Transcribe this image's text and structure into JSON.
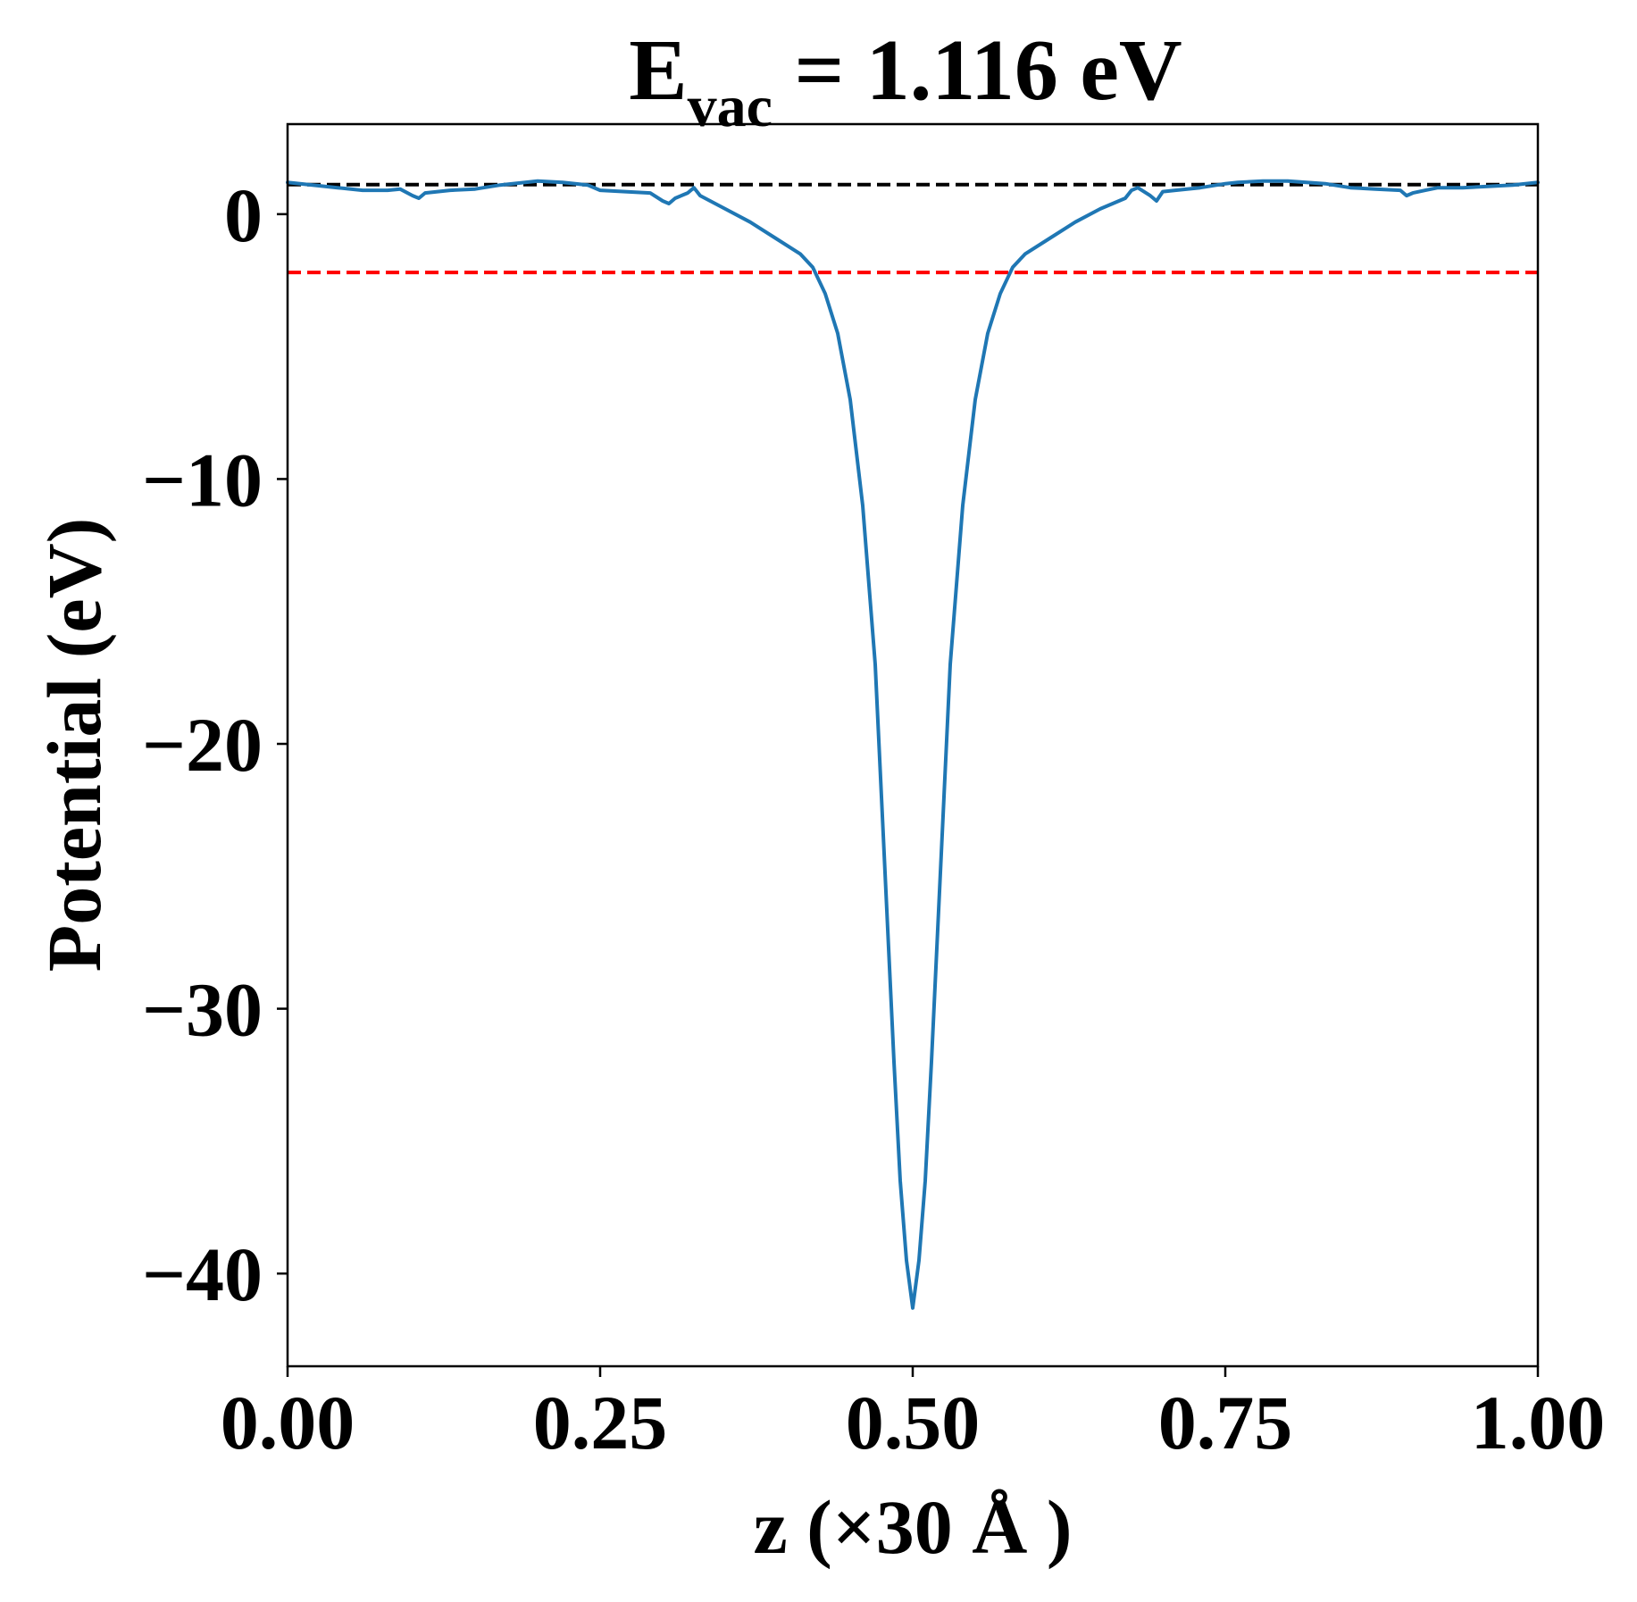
{
  "chart_data": {
    "type": "line",
    "title": {
      "main": "E",
      "subscript": "vac",
      "rest": " = 1.116 eV"
    },
    "xlabel": "z (×30 Å )",
    "ylabel": "Potential (eV)",
    "xlim": [
      0,
      1
    ],
    "ylim": [
      -43.5,
      3.4
    ],
    "xticks": [
      0,
      0.25,
      0.5,
      0.75,
      1.0
    ],
    "xtick_labels": [
      "0.00",
      "0.25",
      "0.50",
      "0.75",
      "1.00"
    ],
    "yticks": [
      0,
      -10,
      -20,
      -30,
      -40
    ],
    "ytick_labels": [
      "0",
      "−10",
      "−20",
      "−30",
      "−40"
    ],
    "grid": false,
    "reference_lines": [
      {
        "y": 1.116,
        "color": "#000000",
        "style": "dashed"
      },
      {
        "y": -2.2,
        "color": "#ff0000",
        "style": "dashed"
      }
    ],
    "series": [
      {
        "color": "#1f77b4",
        "x": [
          0.0,
          0.02,
          0.04,
          0.06,
          0.08,
          0.09,
          0.1,
          0.105,
          0.11,
          0.13,
          0.15,
          0.17,
          0.2,
          0.22,
          0.24,
          0.25,
          0.27,
          0.29,
          0.3,
          0.305,
          0.31,
          0.32,
          0.325,
          0.33,
          0.35,
          0.37,
          0.39,
          0.41,
          0.42,
          0.43,
          0.44,
          0.45,
          0.46,
          0.47,
          0.475,
          0.48,
          0.485,
          0.49,
          0.495,
          0.5,
          0.505,
          0.51,
          0.515,
          0.52,
          0.525,
          0.53,
          0.54,
          0.55,
          0.56,
          0.57,
          0.58,
          0.59,
          0.61,
          0.63,
          0.65,
          0.67,
          0.675,
          0.68,
          0.69,
          0.695,
          0.7,
          0.71,
          0.73,
          0.75,
          0.76,
          0.78,
          0.8,
          0.83,
          0.85,
          0.87,
          0.89,
          0.895,
          0.9,
          0.91,
          0.92,
          0.94,
          0.96,
          0.98,
          1.0
        ],
        "y": [
          1.2,
          1.1,
          1.0,
          0.9,
          0.9,
          0.95,
          0.7,
          0.6,
          0.8,
          0.9,
          0.95,
          1.1,
          1.25,
          1.2,
          1.1,
          0.9,
          0.85,
          0.8,
          0.5,
          0.4,
          0.6,
          0.8,
          1.0,
          0.7,
          0.2,
          -0.3,
          -0.9,
          -1.5,
          -2.0,
          -3.0,
          -4.5,
          -7.0,
          -11.0,
          -17.0,
          -22.0,
          -27.0,
          -32.0,
          -36.5,
          -39.5,
          -41.3,
          -39.5,
          -36.5,
          -32.0,
          -27.0,
          -22.0,
          -17.0,
          -11.0,
          -7.0,
          -4.5,
          -3.0,
          -2.0,
          -1.5,
          -0.9,
          -0.3,
          0.2,
          0.6,
          0.9,
          1.0,
          0.7,
          0.5,
          0.85,
          0.9,
          1.0,
          1.15,
          1.2,
          1.25,
          1.25,
          1.15,
          1.0,
          0.95,
          0.9,
          0.7,
          0.8,
          0.9,
          1.0,
          1.0,
          1.05,
          1.1,
          1.2
        ]
      }
    ]
  }
}
